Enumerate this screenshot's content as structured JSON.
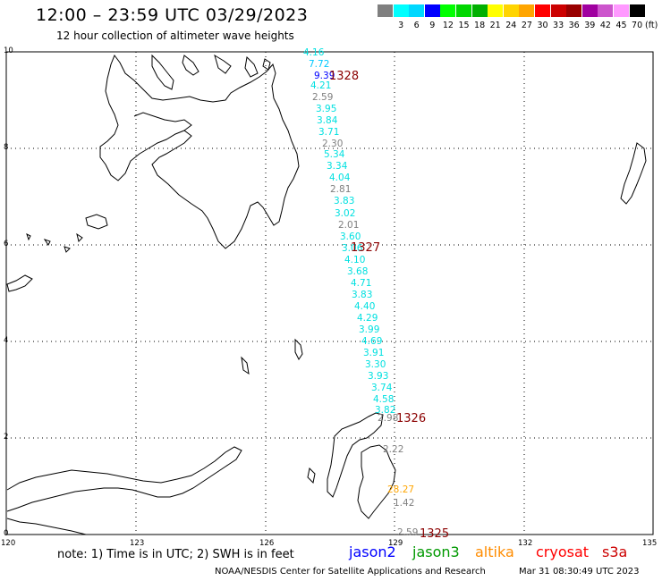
{
  "header": {
    "title": "12:00 – 23:59 UTC 03/29/2023",
    "subtitle": "12 hour collection of altimeter wave heights"
  },
  "scale": {
    "unit_label": "(ft)",
    "items": [
      {
        "label": "",
        "color": "#7f7f7f"
      },
      {
        "label": "3",
        "color": "#00ffff"
      },
      {
        "label": "6",
        "color": "#00d8ff"
      },
      {
        "label": "9",
        "color": "#0000ff"
      },
      {
        "label": "12",
        "color": "#00ff00"
      },
      {
        "label": "15",
        "color": "#00d700"
      },
      {
        "label": "18",
        "color": "#00b000"
      },
      {
        "label": "21",
        "color": "#ffff00"
      },
      {
        "label": "24",
        "color": "#ffd400"
      },
      {
        "label": "27",
        "color": "#ffa500"
      },
      {
        "label": "30",
        "color": "#ff0000"
      },
      {
        "label": "33",
        "color": "#cc0000"
      },
      {
        "label": "36",
        "color": "#990000"
      },
      {
        "label": "39",
        "color": "#a000a0"
      },
      {
        "label": "42",
        "color": "#cc55cc"
      },
      {
        "label": "45",
        "color": "#ff99ff"
      },
      {
        "label": "70",
        "color": "#000000"
      }
    ]
  },
  "axes": {
    "lon_labels": [
      "120",
      "123",
      "126",
      "129",
      "132",
      "135"
    ],
    "lat_labels": [
      "10",
      "8",
      "6",
      "4",
      "2",
      "0"
    ]
  },
  "passes": [
    "1328",
    "1327",
    "1326",
    "1325"
  ],
  "wave_heights": [
    {
      "value": "4.16",
      "color": "#00e0e0"
    },
    {
      "value": "7.72",
      "color": "#00c8ff"
    },
    {
      "value": "9.39",
      "color": "#0000ff"
    },
    {
      "value": "4.21",
      "color": "#00e0e0"
    },
    {
      "value": "2.59",
      "color": "#808080"
    },
    {
      "value": "3.95",
      "color": "#00e0e0"
    },
    {
      "value": "3.84",
      "color": "#00e0e0"
    },
    {
      "value": "3.71",
      "color": "#00e0e0"
    },
    {
      "value": "2.30",
      "color": "#808080"
    },
    {
      "value": "5.34",
      "color": "#00e0e0"
    },
    {
      "value": "3.34",
      "color": "#00e0e0"
    },
    {
      "value": "4.04",
      "color": "#00e0e0"
    },
    {
      "value": "2.81",
      "color": "#808080"
    },
    {
      "value": "3.83",
      "color": "#00e0e0"
    },
    {
      "value": "3.02",
      "color": "#00e0e0"
    },
    {
      "value": "2.01",
      "color": "#808080"
    },
    {
      "value": "3.60",
      "color": "#00e0e0"
    },
    {
      "value": "3.06",
      "color": "#00e0e0"
    },
    {
      "value": "4.10",
      "color": "#00e0e0"
    },
    {
      "value": "3.68",
      "color": "#00e0e0"
    },
    {
      "value": "4.71",
      "color": "#00e0e0"
    },
    {
      "value": "3.83",
      "color": "#00e0e0"
    },
    {
      "value": "4.40",
      "color": "#00e0e0"
    },
    {
      "value": "4.29",
      "color": "#00e0e0"
    },
    {
      "value": "3.99",
      "color": "#00e0e0"
    },
    {
      "value": "4.69",
      "color": "#00e0e0"
    },
    {
      "value": "3.91",
      "color": "#00e0e0"
    },
    {
      "value": "3.30",
      "color": "#00e0e0"
    },
    {
      "value": "3.93",
      "color": "#00e0e0"
    },
    {
      "value": "3.74",
      "color": "#00e0e0"
    },
    {
      "value": "4.58",
      "color": "#00e0e0"
    },
    {
      "value": "3.82",
      "color": "#00e0e0"
    },
    {
      "value": "2.98",
      "color": "#808080"
    },
    {
      "value": "2.22",
      "color": "#808080"
    },
    {
      "value": "28.27",
      "color": "#ffa500"
    },
    {
      "value": "1.42",
      "color": "#808080"
    },
    {
      "value": "2.59",
      "color": "#808080"
    }
  ],
  "footer": {
    "note": "note: 1) Time is in UTC; 2) SWH is in feet",
    "missions": [
      {
        "name": "jason2",
        "color": "#0000ff"
      },
      {
        "name": "jason3",
        "color": "#009900"
      },
      {
        "name": "altika",
        "color": "#ff8c00"
      },
      {
        "name": "cryosat",
        "color": "#ff0000"
      },
      {
        "name": "s3a",
        "color": "#cc0000"
      }
    ],
    "credit": "NOAA/NESDIS Center for Satellite Applications and Research",
    "timestamp": "Mar 31 08:30:49 UTC 2023"
  }
}
